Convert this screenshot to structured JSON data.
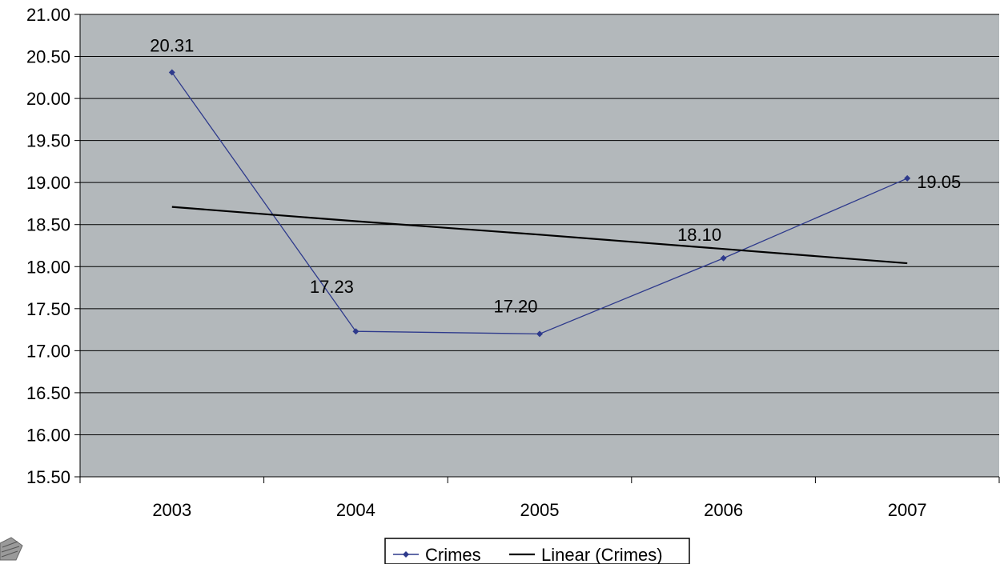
{
  "chart_data": {
    "type": "line",
    "categories": [
      "2003",
      "2004",
      "2005",
      "2006",
      "2007"
    ],
    "series": [
      {
        "name": "Crimes",
        "values": [
          20.31,
          17.23,
          17.2,
          18.1,
          19.05
        ],
        "color": "#2E3A8C",
        "marker": "diamond"
      },
      {
        "name": "Linear (Crimes)",
        "values": [
          18.71,
          18.54,
          18.38,
          18.21,
          18.04
        ],
        "color": "#000000",
        "marker": "none"
      }
    ],
    "data_labels": [
      "20.31",
      "17.23",
      "17.20",
      "18.10",
      "19.05"
    ],
    "ylim": [
      15.5,
      21.0
    ],
    "yticks": [
      "15.50",
      "16.00",
      "16.50",
      "17.00",
      "17.50",
      "18.00",
      "18.50",
      "19.00",
      "19.50",
      "20.00",
      "20.50",
      "21.00"
    ],
    "grid": true,
    "legend": "bottom",
    "plot_background": "#B3B8BB"
  }
}
